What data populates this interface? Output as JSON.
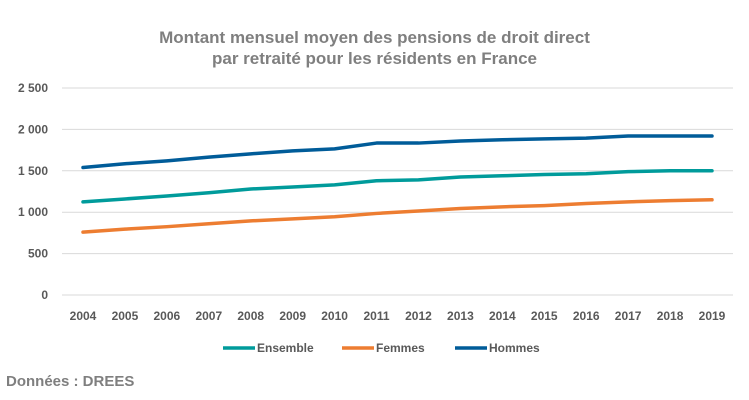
{
  "chart_data": {
    "type": "line",
    "title_line1": "Montant mensuel moyen des pensions de droit direct",
    "title_line2": "par retraité pour les résidents en France",
    "xlabel": "",
    "ylabel": "",
    "categories": [
      "2004",
      "2005",
      "2006",
      "2007",
      "2008",
      "2009",
      "2010",
      "2011",
      "2012",
      "2013",
      "2014",
      "2015",
      "2016",
      "2017",
      "2018",
      "2019"
    ],
    "ylim": [
      0,
      2500
    ],
    "yticks": [
      0,
      500,
      1000,
      1500,
      2000,
      2500
    ],
    "ytick_labels": [
      "0",
      "500",
      "1 000",
      "1 500",
      "2 000",
      "2 500"
    ],
    "grid": true,
    "legend_position": "bottom",
    "series": [
      {
        "name": "Ensemble",
        "color": "#009B9B",
        "values": [
          1125,
          1160,
          1195,
          1235,
          1280,
          1305,
          1330,
          1380,
          1390,
          1425,
          1440,
          1455,
          1465,
          1490,
          1500,
          1500
        ]
      },
      {
        "name": "Femmes",
        "color": "#ED7D31",
        "values": [
          760,
          795,
          825,
          860,
          895,
          920,
          945,
          985,
          1015,
          1045,
          1065,
          1080,
          1105,
          1125,
          1140,
          1150
        ]
      },
      {
        "name": "Hommes",
        "color": "#005C99",
        "values": [
          1540,
          1585,
          1620,
          1665,
          1705,
          1740,
          1765,
          1835,
          1835,
          1860,
          1875,
          1885,
          1895,
          1920,
          1920,
          1920
        ]
      }
    ]
  },
  "source": "Données : DREES"
}
